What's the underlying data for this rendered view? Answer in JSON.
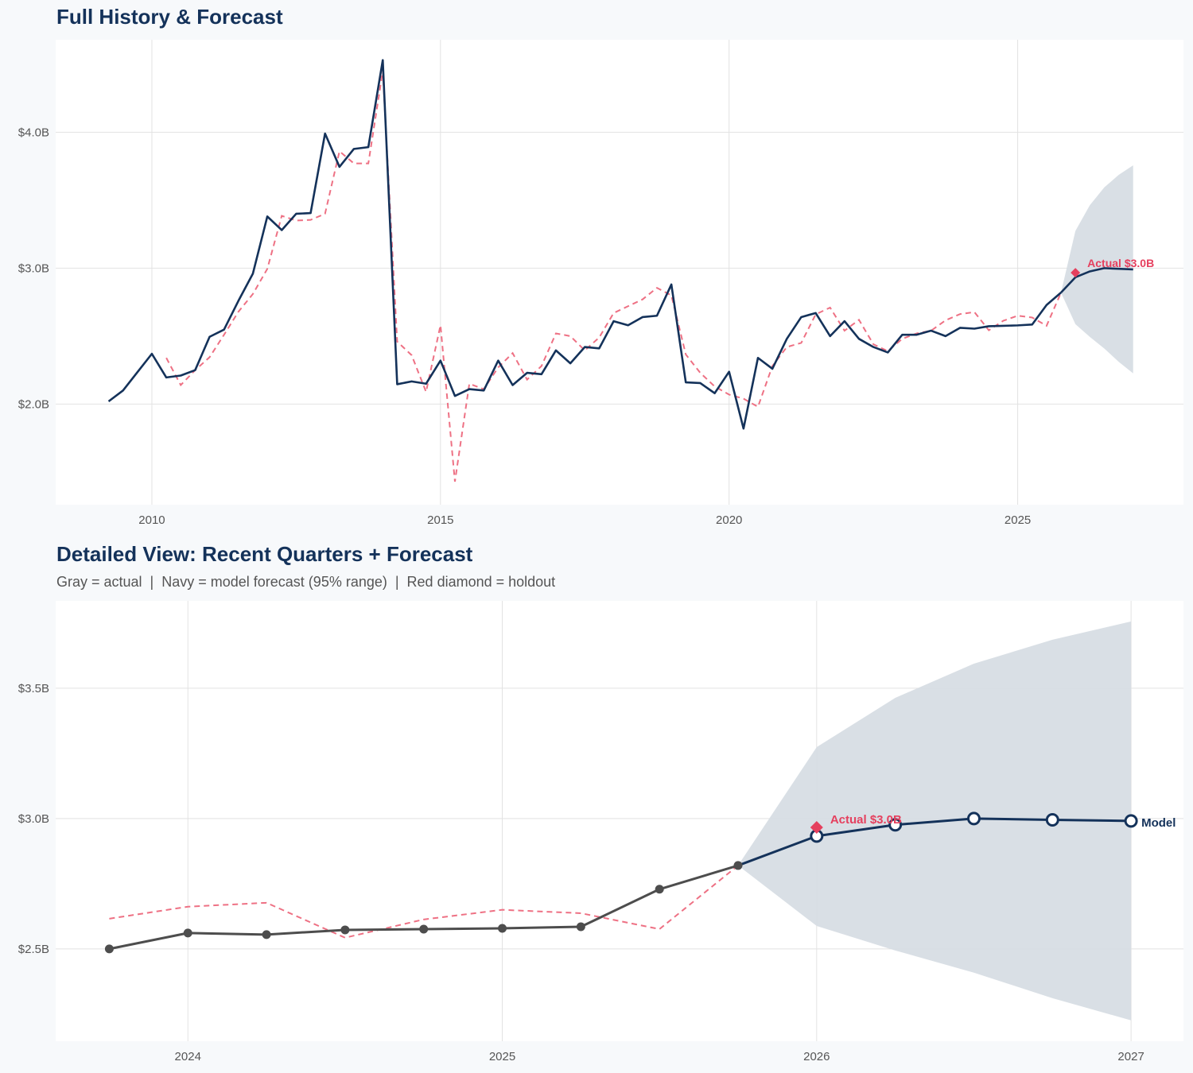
{
  "colors": {
    "actual_top": "#14325a",
    "actual_detail": "#4d4d4d",
    "fitted": "#ee7184",
    "forecast": "#14325a",
    "band": "#d7dde4",
    "holdout": "#e5405e",
    "grid": "#e2e2e2",
    "panel": "#ffffff",
    "background": "#f7f9fb"
  },
  "chart_data": [
    {
      "type": "line",
      "title": "Full History & Forecast",
      "xlim": [
        "2008-05-01",
        "2027-11-15"
      ],
      "ylim": [
        1.26,
        4.68
      ],
      "y_unit": "$B",
      "grid": true,
      "x_ticks": [
        "2010",
        "2015",
        "2020",
        "2025"
      ],
      "y_ticks": [
        {
          "value": 2.0,
          "label": "$2.0B"
        },
        {
          "value": 3.0,
          "label": "$3.0B"
        },
        {
          "value": 4.0,
          "label": "$4.0B"
        }
      ],
      "dates": [
        "2009-04-01",
        "2009-07-01",
        "2009-10-01",
        "2010-01-01",
        "2010-04-01",
        "2010-07-01",
        "2010-10-01",
        "2011-01-01",
        "2011-04-01",
        "2011-07-01",
        "2011-10-01",
        "2012-01-01",
        "2012-04-01",
        "2012-07-01",
        "2012-10-01",
        "2013-01-01",
        "2013-04-01",
        "2013-07-01",
        "2013-10-01",
        "2014-01-01",
        "2014-04-01",
        "2014-07-01",
        "2014-10-01",
        "2015-01-01",
        "2015-04-01",
        "2015-07-01",
        "2015-10-01",
        "2016-01-01",
        "2016-04-01",
        "2016-07-01",
        "2016-10-01",
        "2017-01-01",
        "2017-04-01",
        "2017-07-01",
        "2017-10-01",
        "2018-01-01",
        "2018-04-01",
        "2018-07-01",
        "2018-10-01",
        "2019-01-01",
        "2019-04-01",
        "2019-07-01",
        "2019-10-01",
        "2020-01-01",
        "2020-04-01",
        "2020-07-01",
        "2020-10-01",
        "2021-01-01",
        "2021-04-01",
        "2021-07-01",
        "2021-10-01",
        "2022-01-01",
        "2022-04-01",
        "2022-07-01",
        "2022-10-01",
        "2023-01-01",
        "2023-04-01",
        "2023-07-01",
        "2023-10-01",
        "2024-01-01",
        "2024-04-01",
        "2024-07-01",
        "2024-10-01",
        "2025-01-01",
        "2025-04-01",
        "2025-07-01",
        "2025-10-01"
      ],
      "actual": [
        2.02,
        2.1,
        2.235,
        2.37,
        2.196,
        2.21,
        2.25,
        2.495,
        2.548,
        2.76,
        2.96,
        3.38,
        3.28,
        3.4,
        3.405,
        3.99,
        3.745,
        3.877,
        3.89,
        4.53,
        2.146,
        2.167,
        2.15,
        2.32,
        2.06,
        2.11,
        2.1,
        2.32,
        2.14,
        2.23,
        2.22,
        2.395,
        2.3,
        2.42,
        2.41,
        2.61,
        2.58,
        2.64,
        2.65,
        2.88,
        2.16,
        2.155,
        2.08,
        2.238,
        1.82,
        2.34,
        2.26,
        2.48,
        2.64,
        2.67,
        2.5,
        2.61,
        2.48,
        2.42,
        2.38,
        2.51,
        2.51,
        2.54,
        2.5,
        2.561,
        2.555,
        2.573,
        2.576,
        2.579,
        2.585,
        2.729,
        2.82
      ],
      "fitted": [
        null,
        null,
        null,
        null,
        2.34,
        2.14,
        2.25,
        2.345,
        2.51,
        2.68,
        2.81,
        2.995,
        3.385,
        3.35,
        3.355,
        3.4,
        3.86,
        3.77,
        3.77,
        4.45,
        2.46,
        2.36,
        2.09,
        2.58,
        1.43,
        2.15,
        2.11,
        2.27,
        2.375,
        2.18,
        2.28,
        2.52,
        2.5,
        2.395,
        2.49,
        2.67,
        2.72,
        2.77,
        2.855,
        2.8,
        2.365,
        2.23,
        2.13,
        2.07,
        2.04,
        1.98,
        2.28,
        2.42,
        2.45,
        2.66,
        2.71,
        2.54,
        2.62,
        2.44,
        2.39,
        2.48,
        2.52,
        2.54,
        2.616,
        2.662,
        2.677,
        2.543,
        2.613,
        2.65,
        2.637,
        2.576,
        2.82
      ],
      "forecast": {
        "dates": [
          "2025-10-01",
          "2026-01-01",
          "2026-04-01",
          "2026-07-01",
          "2026-10-01",
          "2027-01-01"
        ],
        "mean": [
          2.82,
          2.933,
          2.976,
          3.0,
          2.995,
          2.991
        ],
        "upper": [
          2.82,
          3.274,
          3.463,
          3.594,
          3.686,
          3.756
        ],
        "lower": [
          2.82,
          2.588,
          2.494,
          2.409,
          2.311,
          2.226
        ]
      },
      "holdout": {
        "date": "2026-01-01",
        "value": 2.966,
        "label": "Actual $3.0B"
      }
    },
    {
      "type": "line",
      "title": "Detailed View: Recent Quarters + Forecast",
      "subtitle": "Gray = actual  |  Navy = model forecast (95% range)  |  Red diamond = holdout",
      "xlim": [
        "2023-07-30",
        "2027-03-01"
      ],
      "ylim": [
        2.146,
        3.835
      ],
      "y_unit": "$B",
      "grid": true,
      "x_ticks": [
        "2024",
        "2025",
        "2026",
        "2027"
      ],
      "y_ticks": [
        {
          "value": 2.5,
          "label": "$2.5B"
        },
        {
          "value": 3.0,
          "label": "$3.0B"
        },
        {
          "value": 3.5,
          "label": "$3.5B"
        }
      ],
      "dates": [
        "2023-10-01",
        "2024-01-01",
        "2024-04-01",
        "2024-07-01",
        "2024-10-01",
        "2025-01-01",
        "2025-04-01",
        "2025-07-01",
        "2025-10-01"
      ],
      "actual": [
        2.5,
        2.561,
        2.555,
        2.573,
        2.576,
        2.579,
        2.585,
        2.729,
        2.82
      ],
      "fitted": [
        2.616,
        2.662,
        2.677,
        2.543,
        2.613,
        2.65,
        2.637,
        2.576,
        2.82
      ],
      "forecast": {
        "dates": [
          "2025-10-01",
          "2026-01-01",
          "2026-04-01",
          "2026-07-01",
          "2026-10-01",
          "2027-01-01"
        ],
        "mean": [
          2.82,
          2.933,
          2.976,
          3.0,
          2.995,
          2.991
        ],
        "upper": [
          2.82,
          3.274,
          3.463,
          3.594,
          3.686,
          3.756
        ],
        "lower": [
          2.82,
          2.588,
          2.494,
          2.409,
          2.311,
          2.226
        ]
      },
      "forecast_label": "Model",
      "holdout": {
        "date": "2026-01-01",
        "value": 2.966,
        "label": "Actual $3.0B"
      }
    }
  ]
}
